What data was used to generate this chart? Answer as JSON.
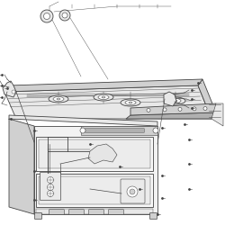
{
  "bg_color": "#ffffff",
  "lc": "#444444",
  "lc2": "#666666",
  "lw": 0.6,
  "fig_w": 2.5,
  "fig_h": 2.5,
  "dpi": 100
}
